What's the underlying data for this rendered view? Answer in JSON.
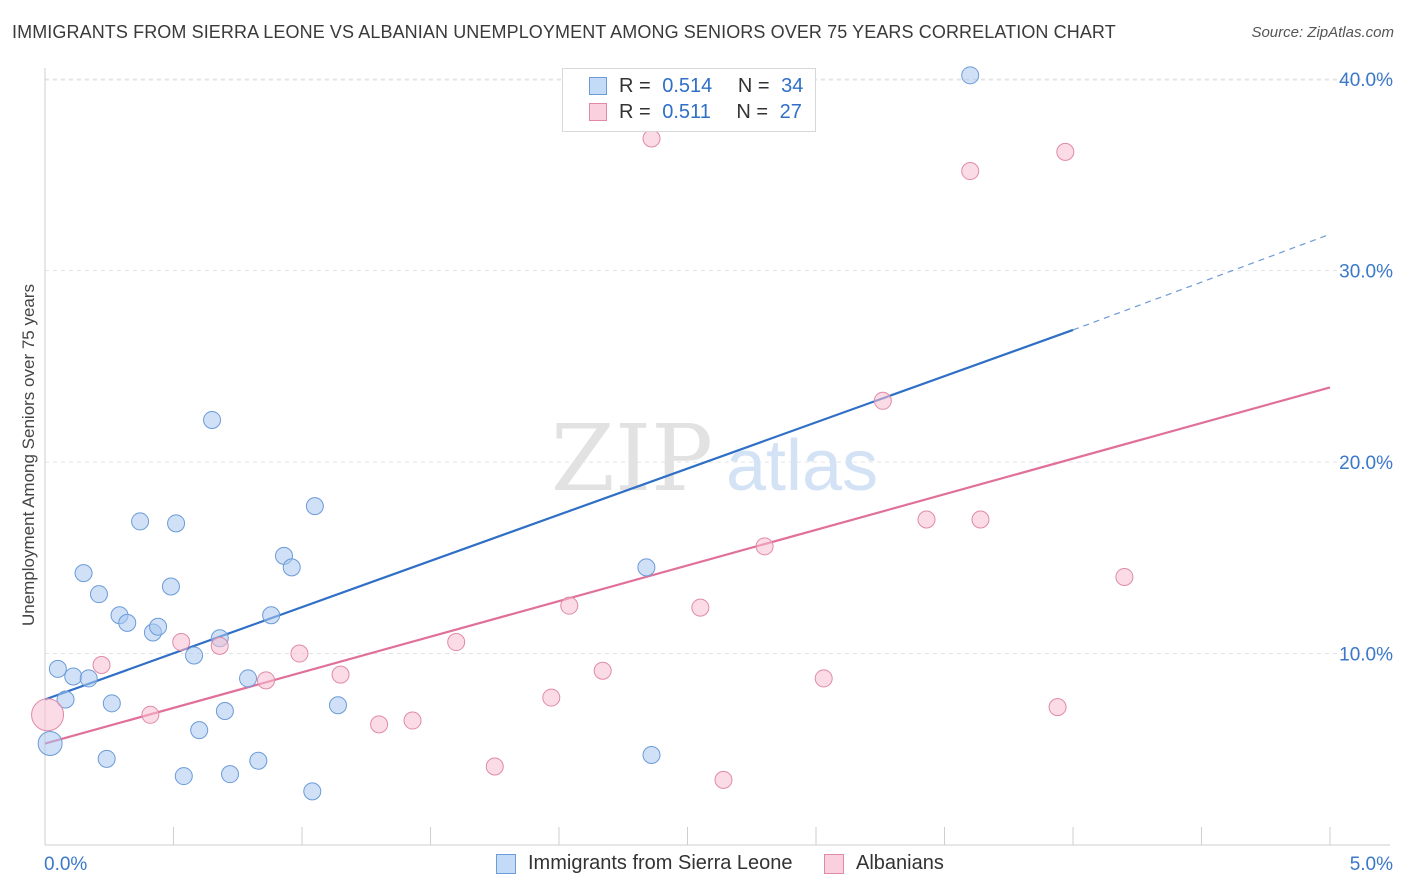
{
  "title": "IMMIGRANTS FROM SIERRA LEONE VS ALBANIAN UNEMPLOYMENT AMONG SENIORS OVER 75 YEARS CORRELATION CHART",
  "source": "Source: ZipAtlas.com",
  "watermark": {
    "zip": "ZIP",
    "atlas": "atlas"
  },
  "legend": {
    "rows": [
      {
        "r_label": "R =",
        "r_value": "0.514",
        "n_label": "N =",
        "n_value": "34"
      },
      {
        "r_label": "R =",
        "r_value": "0.511",
        "n_label": "N =",
        "n_value": "27"
      }
    ]
  },
  "chart_data": {
    "type": "scatter",
    "title": "IMMIGRANTS FROM SIERRA LEONE VS ALBANIAN UNEMPLOYMENT AMONG SENIORS OVER 75 YEARS CORRELATION CHART",
    "xlabel": "",
    "ylabel": "Unemployment Among Seniors over 75 years",
    "xlim": [
      0,
      5
    ],
    "ylim": [
      0,
      41
    ],
    "x_tick_labels": [
      {
        "value": 0,
        "label": "0.0%"
      },
      {
        "value": 5,
        "label": "5.0%"
      }
    ],
    "y_tick_labels": [
      {
        "value": 10,
        "label": "10.0%"
      },
      {
        "value": 20,
        "label": "20.0%"
      },
      {
        "value": 30,
        "label": "30.0%"
      },
      {
        "value": 40,
        "label": "40.0%"
      }
    ],
    "grid": true,
    "legend_position": "top-center",
    "series": [
      {
        "name": "Immigrants from Sierra Leone",
        "color": "#a9c8f0",
        "stroke": "#6b9bd8",
        "line_color": "#2f6fc6",
        "points": [
          [
            0.02,
            5.3
          ],
          [
            0.05,
            9.2
          ],
          [
            0.08,
            7.6
          ],
          [
            0.11,
            8.8
          ],
          [
            0.15,
            14.2
          ],
          [
            0.17,
            8.7
          ],
          [
            0.21,
            13.1
          ],
          [
            0.26,
            7.4
          ],
          [
            0.24,
            4.5
          ],
          [
            0.29,
            12.0
          ],
          [
            0.32,
            11.6
          ],
          [
            0.37,
            16.9
          ],
          [
            0.42,
            11.1
          ],
          [
            0.44,
            11.4
          ],
          [
            0.49,
            13.5
          ],
          [
            0.51,
            16.8
          ],
          [
            0.54,
            3.6
          ],
          [
            0.58,
            9.9
          ],
          [
            0.6,
            6.0
          ],
          [
            0.65,
            22.2
          ],
          [
            0.68,
            10.8
          ],
          [
            0.7,
            7.0
          ],
          [
            0.72,
            3.7
          ],
          [
            0.79,
            8.7
          ],
          [
            0.83,
            4.4
          ],
          [
            0.88,
            12.0
          ],
          [
            0.93,
            15.1
          ],
          [
            0.96,
            14.5
          ],
          [
            1.04,
            2.8
          ],
          [
            1.05,
            17.7
          ],
          [
            1.14,
            7.3
          ],
          [
            2.34,
            14.5
          ],
          [
            2.36,
            4.7
          ],
          [
            3.6,
            40.2
          ]
        ],
        "trend": {
          "x": [
            0,
            4.0
          ],
          "y": [
            7.6,
            26.9
          ]
        },
        "trend_extension": {
          "x": [
            4.0,
            5.0
          ],
          "y": [
            26.9,
            31.9
          ]
        }
      },
      {
        "name": "Albanians",
        "color": "#f7bfd1",
        "stroke": "#e08aa6",
        "line_color": "#e0709a",
        "points": [
          [
            0.01,
            6.8
          ],
          [
            0.22,
            9.4
          ],
          [
            0.41,
            6.8
          ],
          [
            0.53,
            10.6
          ],
          [
            0.68,
            10.4
          ],
          [
            0.86,
            8.6
          ],
          [
            0.99,
            10.0
          ],
          [
            1.15,
            8.9
          ],
          [
            1.3,
            6.3
          ],
          [
            1.43,
            6.5
          ],
          [
            1.6,
            10.6
          ],
          [
            1.75,
            4.1
          ],
          [
            1.97,
            7.7
          ],
          [
            2.04,
            12.5
          ],
          [
            2.17,
            9.1
          ],
          [
            2.36,
            36.9
          ],
          [
            2.55,
            12.4
          ],
          [
            2.64,
            3.4
          ],
          [
            2.8,
            15.6
          ],
          [
            3.03,
            8.7
          ],
          [
            3.26,
            23.2
          ],
          [
            3.43,
            17.0
          ],
          [
            3.6,
            35.2
          ],
          [
            3.64,
            17.0
          ],
          [
            3.94,
            7.2
          ],
          [
            3.97,
            36.2
          ],
          [
            4.2,
            14.0
          ]
        ],
        "trend": {
          "x": [
            0,
            5.0
          ],
          "y": [
            5.3,
            23.9
          ]
        }
      }
    ]
  }
}
